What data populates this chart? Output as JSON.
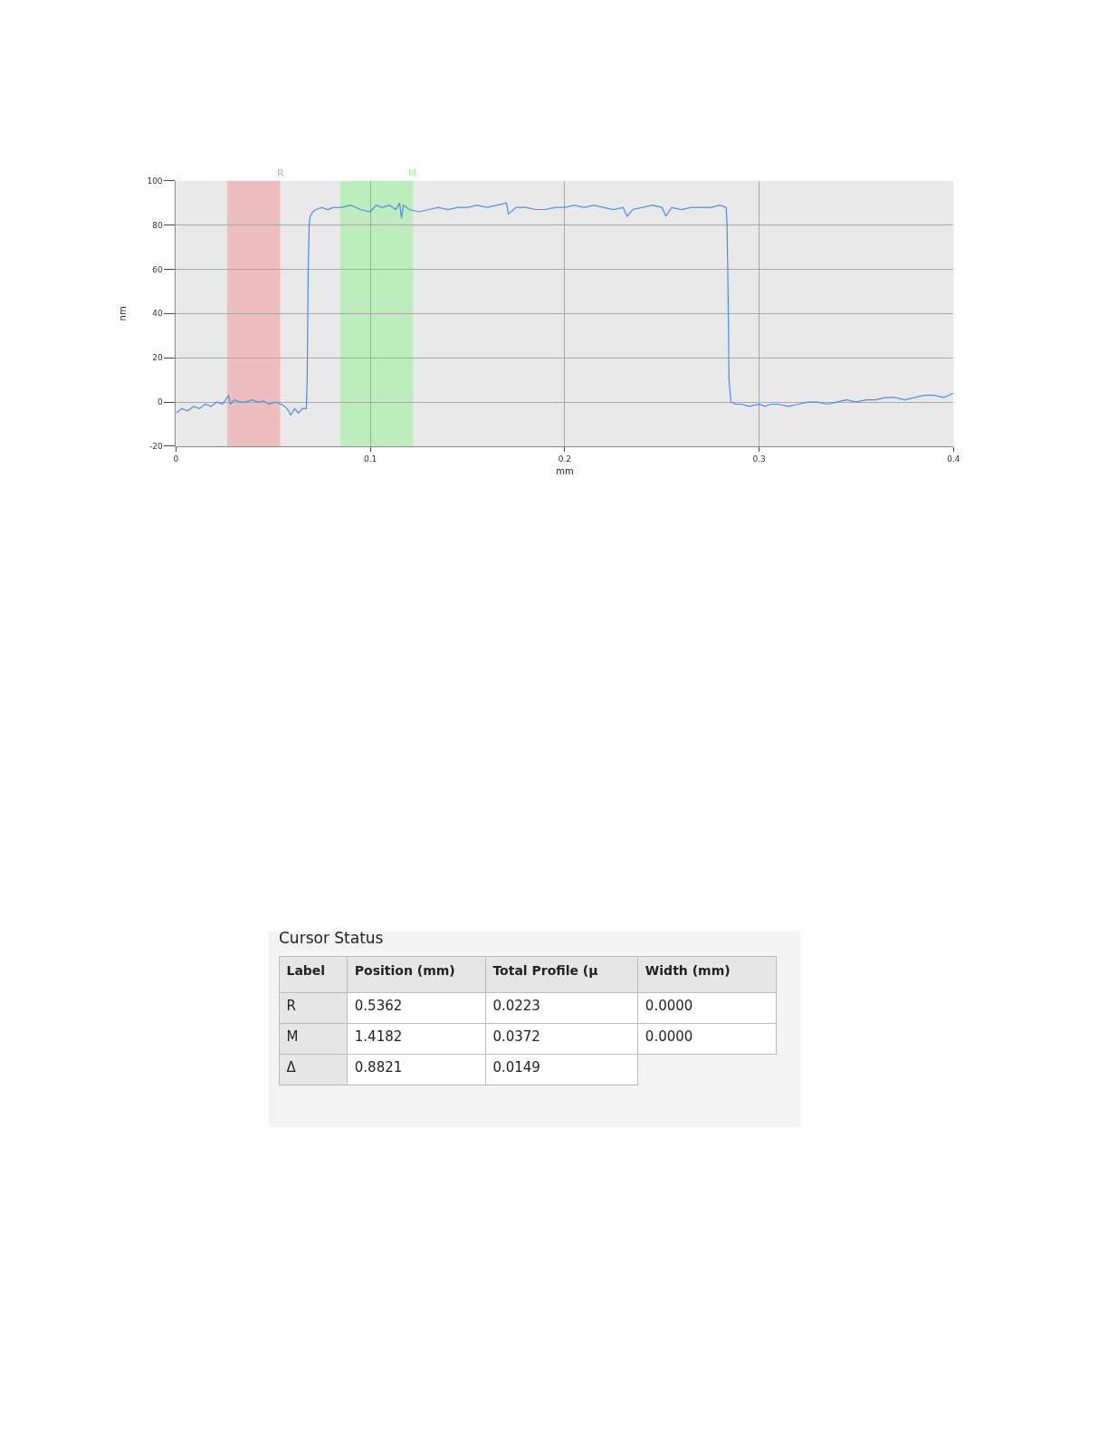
{
  "chart_data": [
    {
      "type": "line",
      "xlabel": "mm",
      "ylabel": "nm",
      "x": [
        0,
        0.003,
        0.006,
        0.009,
        0.012,
        0.015,
        0.018,
        0.021,
        0.024,
        0.027,
        0.028,
        0.03,
        0.033,
        0.036,
        0.039,
        0.042,
        0.045,
        0.048,
        0.051,
        0.054,
        0.056,
        0.058,
        0.059,
        0.061,
        0.063,
        0.065,
        0.067,
        0.0675,
        0.068,
        0.0685,
        0.069,
        0.0705,
        0.072,
        0.075,
        0.078,
        0.081,
        0.085,
        0.09,
        0.095,
        0.1,
        0.103,
        0.106,
        0.11,
        0.113,
        0.115,
        0.116,
        0.117,
        0.12,
        0.125,
        0.13,
        0.135,
        0.14,
        0.145,
        0.15,
        0.155,
        0.16,
        0.165,
        0.17,
        0.171,
        0.175,
        0.18,
        0.185,
        0.19,
        0.195,
        0.2,
        0.205,
        0.21,
        0.215,
        0.22,
        0.225,
        0.23,
        0.232,
        0.235,
        0.24,
        0.245,
        0.25,
        0.252,
        0.255,
        0.26,
        0.265,
        0.27,
        0.275,
        0.28,
        0.283,
        0.2835,
        0.284,
        0.2845,
        0.2855,
        0.288,
        0.291,
        0.295,
        0.3,
        0.303,
        0.306,
        0.31,
        0.315,
        0.32,
        0.325,
        0.33,
        0.335,
        0.34,
        0.345,
        0.35,
        0.355,
        0.36,
        0.365,
        0.37,
        0.375,
        0.38,
        0.385,
        0.39,
        0.395,
        0.4
      ],
      "series": [
        {
          "color": "#4a8ee6",
          "values": [
            -5,
            -3,
            -4,
            -2,
            -3,
            -1,
            -2,
            0,
            -1,
            3,
            -1,
            1,
            0,
            0,
            1,
            0,
            0.5,
            -1,
            0,
            -1,
            -2,
            -4,
            -6,
            -3,
            -5,
            -3,
            -3,
            10,
            60,
            80,
            84,
            86,
            87,
            88,
            87,
            88,
            88,
            89,
            87,
            86,
            89,
            88,
            89,
            87,
            90,
            83,
            89,
            87,
            86,
            87,
            88,
            87,
            88,
            88,
            89,
            88,
            89,
            90,
            85,
            88,
            88,
            87,
            87,
            88,
            88,
            89,
            88,
            89,
            88,
            87,
            88,
            84,
            87,
            88,
            89,
            88,
            84,
            88,
            87,
            88,
            88,
            88,
            89,
            88,
            80,
            50,
            10,
            0,
            -1,
            -1,
            -2,
            -1,
            -2,
            -1,
            -1,
            -2,
            -1,
            0,
            0,
            -1,
            0,
            1,
            0,
            1,
            1,
            2,
            2,
            1,
            2,
            3,
            3,
            2,
            4
          ]
        }
      ],
      "xlim": [
        0,
        0.4
      ],
      "xticks": [
        0,
        0.1,
        0.2,
        0.3,
        0.4
      ],
      "ylim": [
        -20,
        100
      ],
      "yticks": [
        -20,
        0,
        20,
        40,
        60,
        80,
        100
      ],
      "grid": true,
      "marker": "none",
      "line_style": "solid",
      "bands": [
        {
          "axis": "x",
          "from": 0.0263,
          "to": 0.0536,
          "label": "R",
          "color": "#f2a0a0"
        },
        {
          "axis": "x",
          "from": 0.0845,
          "to": 0.122,
          "label": "M",
          "color": "#a0f0a0"
        }
      ]
    },
    {
      "type": "other",
      "title": "Cursor Status",
      "categories": [
        "Label",
        "Position (mm)",
        "Total Profile (µ",
        "Width (mm)"
      ],
      "cell_labels": [
        [
          "R",
          "0.5362",
          "0.0223",
          "0.0000"
        ],
        [
          "M",
          "1.4182",
          "0.0372",
          "0.0000"
        ],
        [
          "Δ",
          "0.8821",
          "0.0149",
          null
        ]
      ]
    }
  ]
}
